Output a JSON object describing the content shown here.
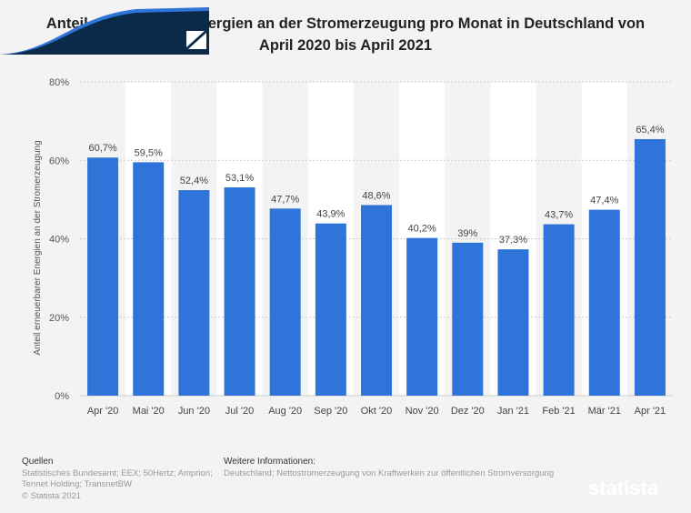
{
  "chart_data": {
    "type": "bar",
    "title": "Anteil erneuerbarer Energien an der Stromerzeugung pro Monat in Deutschland von April 2020 bis April 2021",
    "ylabel": "Anteil erneuerbarer Energien an der Stromerzeugung",
    "xlabel": "",
    "ylim": [
      0,
      80
    ],
    "yticks": [
      "0%",
      "20%",
      "40%",
      "60%",
      "80%"
    ],
    "categories": [
      "Apr '20",
      "Mai '20",
      "Jun '20",
      "Jul '20",
      "Aug '20",
      "Sep '20",
      "Okt '20",
      "Nov '20",
      "Dez '20",
      "Jan '21",
      "Feb '21",
      "Mär '21",
      "Apr '21"
    ],
    "values": [
      60.7,
      59.5,
      52.4,
      53.1,
      47.7,
      43.9,
      48.6,
      40.2,
      39,
      37.3,
      43.7,
      47.4,
      65.4
    ],
    "labels": [
      "60,7%",
      "59,5%",
      "52,4%",
      "53,1%",
      "47,7%",
      "43,9%",
      "48,6%",
      "40,2%",
      "39%",
      "37,3%",
      "43,7%",
      "47,4%",
      "65,4%"
    ],
    "bar_color": "#2f74d9",
    "grid": true
  },
  "footer": {
    "sources_heading": "Quellen",
    "sources_line1": "Statistisches Bundesamt; EEX; 50Hertz; Amprion;",
    "sources_line2": "Tennet Holding; TransnetBW",
    "copyright": "© Statista 2021",
    "info_heading": "Weitere Informationen:",
    "info_text": "Deutschland; Nettostromerzeugung von Kraftwerken zur öffentlichen Stromversorgung",
    "logo": "statista"
  }
}
